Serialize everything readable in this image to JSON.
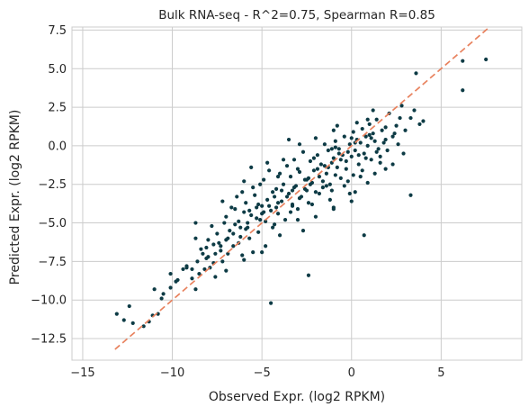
{
  "chart_data": {
    "type": "scatter",
    "title": "Bulk RNA-seq - R^2=0.75, Spearman R=0.85",
    "xlabel": "Observed Expr. (log2 RPKM)",
    "ylabel": "Predicted Expr. (log2 RPKM)",
    "xlim": [
      -15.6,
      9.5
    ],
    "ylim": [
      -13.9,
      7.7
    ],
    "xticks": [
      -15,
      -10,
      -5,
      0,
      5
    ],
    "xtick_labels": [
      "−15",
      "−10",
      "−5",
      "0",
      "5"
    ],
    "yticks": [
      -12.5,
      -10,
      -7.5,
      -5,
      -2.5,
      0,
      2.5,
      5,
      7.5
    ],
    "ytick_labels": [
      "−12.5",
      "−10.0",
      "−7.5",
      "−5.0",
      "−2.5",
      "0.0",
      "2.5",
      "5.0",
      "7.5"
    ],
    "grid": true,
    "point_color": "#0d3b45",
    "identity_line": {
      "style": "dashed",
      "color": "#e8825e",
      "x": [
        -13.2,
        7.6
      ],
      "y": [
        -13.2,
        7.6
      ]
    },
    "points": [
      [
        -13.1,
        -10.9
      ],
      [
        -12.7,
        -11.3
      ],
      [
        -12.4,
        -10.4
      ],
      [
        -12.2,
        -11.5
      ],
      [
        -11.6,
        -11.7
      ],
      [
        -11.3,
        -11.4
      ],
      [
        -11.1,
        -11.0
      ],
      [
        -11.0,
        -9.3
      ],
      [
        -10.8,
        -10.9
      ],
      [
        -10.6,
        -9.9
      ],
      [
        -10.1,
        -9.2
      ],
      [
        -10.1,
        -8.3
      ],
      [
        -9.7,
        -8.7
      ],
      [
        -9.4,
        -8.0
      ],
      [
        -9.2,
        -7.8
      ],
      [
        -8.9,
        -8.6
      ],
      [
        -8.7,
        -6.0
      ],
      [
        -8.7,
        -9.3
      ],
      [
        -8.6,
        -7.5
      ],
      [
        -8.5,
        -8.3
      ],
      [
        -8.4,
        -6.7
      ],
      [
        -8.3,
        -7.0
      ],
      [
        -8.2,
        -8.0
      ],
      [
        -8.1,
        -6.6
      ],
      [
        -8.0,
        -7.2
      ],
      [
        -7.9,
        -7.9
      ],
      [
        -7.8,
        -5.2
      ],
      [
        -7.7,
        -6.4
      ],
      [
        -7.6,
        -7.0
      ],
      [
        -7.5,
        -5.7
      ],
      [
        -7.4,
        -6.3
      ],
      [
        -7.3,
        -6.8
      ],
      [
        -7.2,
        -7.5
      ],
      [
        -7.1,
        -5.0
      ],
      [
        -7.0,
        -4.6
      ],
      [
        -6.9,
        -6.0
      ],
      [
        -6.8,
        -5.5
      ],
      [
        -6.7,
        -4.0
      ],
      [
        -6.6,
        -6.5
      ],
      [
        -6.5,
        -5.1
      ],
      [
        -6.4,
        -3.3
      ],
      [
        -6.3,
        -4.9
      ],
      [
        -6.2,
        -5.9
      ],
      [
        -6.1,
        -7.1
      ],
      [
        -6.0,
        -4.3
      ],
      [
        -5.9,
        -3.7
      ],
      [
        -5.8,
        -5.3
      ],
      [
        -5.7,
        -6.0
      ],
      [
        -5.6,
        -4.5
      ],
      [
        -5.5,
        -2.7
      ],
      [
        -5.4,
        -3.2
      ],
      [
        -5.3,
        -4.0
      ],
      [
        -5.2,
        -5.6
      ],
      [
        -5.1,
        -4.8
      ],
      [
        -5.0,
        -3.9
      ],
      [
        -4.9,
        -2.2
      ],
      [
        -4.8,
        -4.9
      ],
      [
        -4.7,
        -3.5
      ],
      [
        -4.6,
        -1.6
      ],
      [
        -4.5,
        -4.2
      ],
      [
        -4.4,
        -3.0
      ],
      [
        -4.3,
        -5.1
      ],
      [
        -4.2,
        -2.8
      ],
      [
        -4.1,
        -4.4
      ],
      [
        -4.0,
        -1.8
      ],
      [
        -3.9,
        -3.6
      ],
      [
        -3.8,
        -2.5
      ],
      [
        -3.7,
        -4.8
      ],
      [
        -3.6,
        -1.3
      ],
      [
        -3.5,
        -3.1
      ],
      [
        -3.4,
        -2.0
      ],
      [
        -3.3,
        -3.9
      ],
      [
        -3.2,
        -0.9
      ],
      [
        -3.1,
        -2.6
      ],
      [
        -3.0,
        -4.1
      ],
      [
        -2.9,
        -1.7
      ],
      [
        -2.8,
        -3.3
      ],
      [
        -2.7,
        -0.4
      ],
      [
        -2.6,
        -2.2
      ],
      [
        -2.5,
        -2.9
      ],
      [
        -2.4,
        -3.7
      ],
      [
        -2.3,
        -1.0
      ],
      [
        -2.2,
        -2.4
      ],
      [
        -2.1,
        -1.6
      ],
      [
        -2.0,
        -3.0
      ],
      [
        -1.9,
        -0.6
      ],
      [
        -1.8,
        -2.0
      ],
      [
        -1.7,
        -1.2
      ],
      [
        -1.6,
        -2.7
      ],
      [
        -1.5,
        0.1
      ],
      [
        -1.4,
        -1.8
      ],
      [
        -1.3,
        -0.3
      ],
      [
        -1.2,
        -2.5
      ],
      [
        -1.1,
        -1.1
      ],
      [
        -1.0,
        -0.8
      ],
      [
        -0.9,
        0.3
      ],
      [
        -0.8,
        -1.4
      ],
      [
        -0.7,
        -0.2
      ],
      [
        -0.6,
        -2.1
      ],
      [
        -0.5,
        -0.6
      ],
      [
        -0.4,
        0.6
      ],
      [
        -0.3,
        -1.0
      ],
      [
        -0.2,
        -0.4
      ],
      [
        -0.1,
        0.1
      ],
      [
        0.0,
        -0.7
      ],
      [
        0.1,
        0.9
      ],
      [
        0.2,
        -0.3
      ],
      [
        0.3,
        0.4
      ],
      [
        0.4,
        -1.2
      ],
      [
        0.5,
        0.2
      ],
      [
        0.6,
        1.1
      ],
      [
        0.7,
        -0.5
      ],
      [
        0.8,
        0.6
      ],
      [
        0.9,
        0.0
      ],
      [
        1.0,
        1.4
      ],
      [
        1.1,
        -0.9
      ],
      [
        1.2,
        0.8
      ],
      [
        1.3,
        0.3
      ],
      [
        1.4,
        1.7
      ],
      [
        1.5,
        -0.2
      ],
      [
        1.7,
        1.0
      ],
      [
        1.9,
        0.4
      ],
      [
        2.1,
        2.1
      ],
      [
        2.3,
        0.6
      ],
      [
        2.5,
        1.3
      ],
      [
        2.8,
        2.6
      ],
      [
        3.0,
        1.0
      ],
      [
        3.3,
        1.8
      ],
      [
        3.6,
        4.7
      ],
      [
        4.0,
        1.6
      ],
      [
        6.2,
        5.5
      ],
      [
        6.2,
        3.6
      ],
      [
        7.5,
        5.6
      ],
      [
        3.3,
        -3.2
      ],
      [
        0.7,
        -5.8
      ],
      [
        -2.4,
        -8.4
      ],
      [
        -4.5,
        -10.2
      ],
      [
        -8.7,
        -5.0
      ],
      [
        -3.5,
        0.4
      ],
      [
        -1.0,
        -4.1
      ],
      [
        0.2,
        -3.0
      ],
      [
        -6.0,
        -2.3
      ],
      [
        -4.8,
        -6.5
      ],
      [
        -2.7,
        -5.5
      ],
      [
        -1.2,
        -3.5
      ],
      [
        1.3,
        -1.8
      ],
      [
        2.3,
        -1.2
      ],
      [
        -7.2,
        -3.6
      ],
      [
        -5.5,
        -6.9
      ],
      [
        -0.8,
        1.3
      ],
      [
        -6.5,
        -4.1
      ],
      [
        -5.2,
        -3.8
      ],
      [
        -4.2,
        -4.0
      ],
      [
        -3.2,
        -2.7
      ],
      [
        -2.5,
        -2.2
      ],
      [
        -1.8,
        -3.1
      ],
      [
        -0.9,
        -1.9
      ],
      [
        -0.2,
        -2.3
      ],
      [
        0.6,
        -1.6
      ],
      [
        1.6,
        -0.7
      ],
      [
        -5.9,
        -5.4
      ],
      [
        -4.9,
        -4.3
      ],
      [
        -3.9,
        -2.9
      ],
      [
        -2.9,
        -3.4
      ],
      [
        -1.9,
        -1.5
      ],
      [
        -0.9,
        -0.1
      ],
      [
        0.1,
        -1.9
      ],
      [
        1.1,
        0.5
      ],
      [
        2.0,
        -0.3
      ],
      [
        2.6,
        0.1
      ],
      [
        -7.0,
        -6.1
      ],
      [
        -6.2,
        -5.3
      ],
      [
        -5.3,
        -4.7
      ],
      [
        -4.3,
        -3.3
      ],
      [
        -3.3,
        -3.8
      ],
      [
        -2.3,
        -2.5
      ],
      [
        -1.3,
        -1.4
      ],
      [
        -0.3,
        -1.5
      ],
      [
        0.8,
        -0.8
      ],
      [
        1.8,
        0.2
      ],
      [
        -9.2,
        -7.9
      ],
      [
        -8.0,
        -6.1
      ],
      [
        -7.7,
        -7.6
      ],
      [
        -6.9,
        -7.0
      ],
      [
        -6.3,
        -6.3
      ],
      [
        -5.7,
        -4.2
      ],
      [
        -4.6,
        -3.9
      ],
      [
        -3.6,
        -3.3
      ],
      [
        -2.6,
        -2.8
      ],
      [
        -1.6,
        -2.3
      ],
      [
        -0.6,
        -0.9
      ],
      [
        0.4,
        -0.6
      ],
      [
        1.4,
        -0.4
      ],
      [
        2.4,
        0.8
      ],
      [
        -10.5,
        -9.6
      ],
      [
        -9.8,
        -8.8
      ],
      [
        -8.9,
        -8.0
      ],
      [
        -8.1,
        -7.3
      ],
      [
        -7.3,
        -6.5
      ],
      [
        -6.6,
        -5.7
      ],
      [
        -5.8,
        -5.0
      ],
      [
        -5.0,
        -4.4
      ],
      [
        -4.1,
        -3.7
      ],
      [
        -3.3,
        -2.9
      ],
      [
        -2.4,
        -2.1
      ],
      [
        -1.5,
        -1.3
      ],
      [
        -0.7,
        -0.5
      ],
      [
        0.2,
        0.2
      ],
      [
        1.0,
        0.7
      ],
      [
        1.9,
        1.2
      ],
      [
        2.7,
        1.8
      ],
      [
        3.5,
        2.3
      ],
      [
        -6.1,
        -3.0
      ],
      [
        -5.1,
        -2.5
      ],
      [
        -4.1,
        -2.0
      ],
      [
        -3.0,
        -1.5
      ],
      [
        -2.1,
        -0.8
      ],
      [
        -1.1,
        -0.2
      ],
      [
        0.0,
        0.5
      ],
      [
        0.9,
        1.7
      ],
      [
        -1.1,
        -2.9
      ],
      [
        -0.1,
        -3.1
      ],
      [
        0.9,
        -2.4
      ],
      [
        1.9,
        -1.5
      ],
      [
        -2.0,
        -4.6
      ],
      [
        -1.0,
        -4.0
      ],
      [
        0.0,
        -3.6
      ],
      [
        -3.0,
        -4.8
      ],
      [
        -4.0,
        -5.8
      ],
      [
        -5.0,
        -6.9
      ],
      [
        -6.0,
        -7.4
      ],
      [
        -7.0,
        -8.1
      ],
      [
        -7.6,
        -8.5
      ],
      [
        -4.4,
        -5.3
      ],
      [
        -3.4,
        -4.3
      ],
      [
        -2.2,
        -3.8
      ],
      [
        -1.4,
        -2.6
      ],
      [
        -0.4,
        -2.6
      ],
      [
        0.5,
        -2.0
      ],
      [
        1.6,
        -1.1
      ],
      [
        2.9,
        -0.5
      ],
      [
        3.8,
        1.4
      ],
      [
        -5.6,
        -1.4
      ],
      [
        -4.7,
        -1.1
      ],
      [
        -3.8,
        -0.9
      ],
      [
        -2.9,
        0.1
      ],
      [
        -2.0,
        0.5
      ],
      [
        -1.0,
        1.0
      ],
      [
        0.3,
        1.5
      ],
      [
        1.2,
        2.3
      ]
    ]
  }
}
